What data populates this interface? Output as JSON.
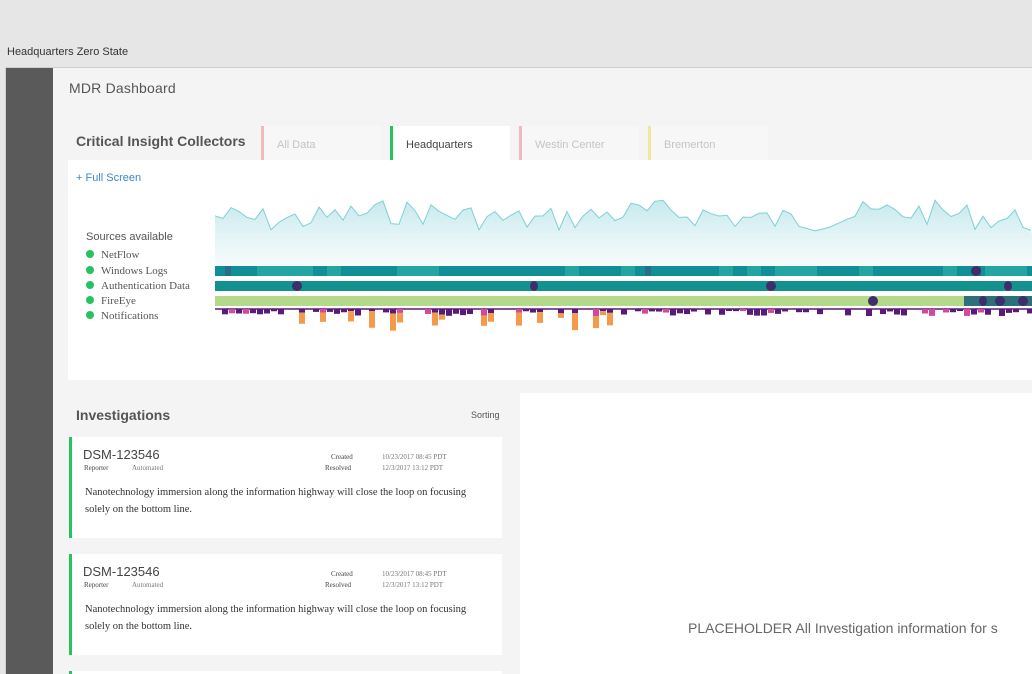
{
  "window": {
    "title": "Headquarters Zero State"
  },
  "dashboard": {
    "title": "MDR Dashboard"
  },
  "collectors": {
    "title": "Critical Insight Collectors",
    "tabs": [
      {
        "label": "All Data",
        "color": "#f0b9bd",
        "active": false
      },
      {
        "label": "Headquarters",
        "color": "#27c160",
        "active": true
      },
      {
        "label": "Westin Center",
        "color": "#f0b9bd",
        "active": false
      },
      {
        "label": "Bremerton",
        "color": "#f4e59a",
        "active": false
      }
    ],
    "full_screen": "+ Full Screen",
    "sources_title": "Sources available",
    "sources": [
      "NetFlow",
      "Windows Logs",
      "Authentication Data",
      "FireEye",
      "Notifications"
    ],
    "colors": {
      "area_stroke": "#7fd0d6",
      "netflow_band": "#1a9a9e",
      "auth_band": "#12918f",
      "fireeye_band": "#b5d98a",
      "marker": "#3d2f6b",
      "notif_orange": "#f39a4b",
      "notif_purple": "#5a1a7a",
      "notif_pink": "#d6469a"
    }
  },
  "investigations": {
    "title": "Investigations",
    "sorting_label": "Sorting",
    "items": [
      {
        "id": "DSM-123546",
        "reporter_label": "Reporter",
        "reporter_value": "Automated",
        "created_label": "Created",
        "created_value": "10/23/2017 08:45 PDT",
        "resolved_label": "Resolved",
        "resolved_value": "12/3/2017 13:12 PDT",
        "description": "Nanotechnology immersion along the information highway will close the loop on focusing solely on the bottom line."
      },
      {
        "id": "DSM-123546",
        "reporter_label": "Reporter",
        "reporter_value": "Automated",
        "created_label": "Created",
        "created_value": "10/23/2017 08:45 PDT",
        "resolved_label": "Resolved",
        "resolved_value": "12/3/2017 13:12 PDT",
        "description": "Nanotechnology immersion along the information highway will close the loop on focusing solely on the bottom line."
      }
    ]
  },
  "placeholder": {
    "text": "PLACEHOLDER All Investigation information for s"
  }
}
